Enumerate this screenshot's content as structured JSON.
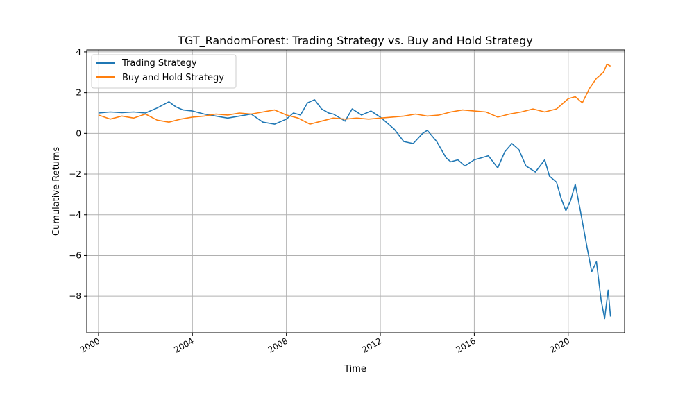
{
  "chart_data": {
    "type": "line",
    "title": "TGT_RandomForest: Trading Strategy vs. Buy and Hold Strategy",
    "xlabel": "Time",
    "ylabel": "Cumulative Returns",
    "xlim": [
      1999.5,
      2022.4
    ],
    "ylim": [
      -9.8,
      4.1
    ],
    "x_ticks": [
      2000,
      2004,
      2008,
      2012,
      2016,
      2020
    ],
    "x_tick_labels": [
      "2000",
      "2004",
      "2008",
      "2012",
      "2016",
      "2020"
    ],
    "y_ticks": [
      4,
      2,
      0,
      -2,
      -4,
      -6,
      -8
    ],
    "y_tick_labels": [
      "4",
      "2",
      "0",
      "−2",
      "−4",
      "−6",
      "−8"
    ],
    "grid": true,
    "legend_position": "top-left",
    "series": [
      {
        "name": "Trading Strategy",
        "color": "#1f77b4",
        "x": [
          2000.0,
          2000.5,
          2001.0,
          2001.5,
          2002.0,
          2002.5,
          2003.0,
          2003.3,
          2003.6,
          2004.0,
          2004.5,
          2005.0,
          2005.5,
          2006.0,
          2006.5,
          2007.0,
          2007.5,
          2008.0,
          2008.3,
          2008.6,
          2008.9,
          2009.2,
          2009.5,
          2009.8,
          2010.0,
          2010.5,
          2010.8,
          2011.2,
          2011.6,
          2012.0,
          2012.3,
          2012.6,
          2013.0,
          2013.4,
          2013.8,
          2014.0,
          2014.4,
          2014.8,
          2015.0,
          2015.3,
          2015.6,
          2016.0,
          2016.3,
          2016.6,
          2017.0,
          2017.3,
          2017.6,
          2017.9,
          2018.2,
          2018.6,
          2019.0,
          2019.2,
          2019.5,
          2019.7,
          2019.9,
          2020.1,
          2020.3,
          2020.5,
          2020.8,
          2021.0,
          2021.2,
          2021.4,
          2021.55,
          2021.7,
          2021.8
        ],
        "y": [
          1.0,
          1.05,
          1.02,
          1.05,
          1.0,
          1.25,
          1.55,
          1.3,
          1.15,
          1.1,
          0.95,
          0.85,
          0.75,
          0.85,
          0.95,
          0.55,
          0.45,
          0.7,
          1.0,
          0.9,
          1.5,
          1.65,
          1.2,
          1.0,
          0.95,
          0.6,
          1.2,
          0.9,
          1.1,
          0.8,
          0.5,
          0.2,
          -0.4,
          -0.5,
          0.0,
          0.15,
          -0.4,
          -1.2,
          -1.4,
          -1.3,
          -1.6,
          -1.3,
          -1.2,
          -1.1,
          -1.7,
          -0.9,
          -0.5,
          -0.8,
          -1.6,
          -1.9,
          -1.3,
          -2.1,
          -2.4,
          -3.2,
          -3.8,
          -3.3,
          -2.5,
          -3.7,
          -5.6,
          -6.8,
          -6.3,
          -8.2,
          -9.1,
          -7.7,
          -9.0
        ]
      },
      {
        "name": "Buy and Hold Strategy",
        "color": "#ff7f0e",
        "x": [
          2000.0,
          2000.5,
          2001.0,
          2001.5,
          2002.0,
          2002.5,
          2003.0,
          2003.5,
          2004.0,
          2004.5,
          2005.0,
          2005.5,
          2006.0,
          2006.5,
          2007.0,
          2007.5,
          2008.0,
          2008.5,
          2009.0,
          2009.5,
          2010.0,
          2010.5,
          2011.0,
          2011.5,
          2012.0,
          2012.5,
          2013.0,
          2013.5,
          2014.0,
          2014.5,
          2015.0,
          2015.5,
          2016.0,
          2016.5,
          2017.0,
          2017.5,
          2018.0,
          2018.5,
          2019.0,
          2019.5,
          2020.0,
          2020.3,
          2020.6,
          2020.9,
          2021.2,
          2021.5,
          2021.65,
          2021.8
        ],
        "y": [
          0.9,
          0.7,
          0.85,
          0.75,
          0.95,
          0.65,
          0.55,
          0.7,
          0.8,
          0.85,
          0.95,
          0.9,
          1.0,
          0.95,
          1.05,
          1.15,
          0.9,
          0.75,
          0.45,
          0.6,
          0.75,
          0.7,
          0.75,
          0.7,
          0.75,
          0.8,
          0.85,
          0.95,
          0.85,
          0.9,
          1.05,
          1.15,
          1.1,
          1.05,
          0.8,
          0.95,
          1.05,
          1.2,
          1.05,
          1.2,
          1.7,
          1.8,
          1.5,
          2.2,
          2.7,
          3.0,
          3.4,
          3.3
        ]
      }
    ]
  }
}
